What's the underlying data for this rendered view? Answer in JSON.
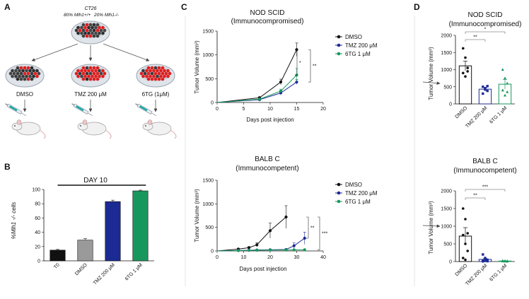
{
  "panels": {
    "A": "A",
    "B": "B",
    "C": "C",
    "D": "D"
  },
  "schematic": {
    "cell_line": "CT26",
    "mix_left": "80% Mlh1+/+",
    "mix_right": "20% Mlh1-/-",
    "conditions": [
      "DMSO",
      "TMZ 200 μM",
      "6TG (1μM)"
    ]
  },
  "colors": {
    "DMSO": "#111111",
    "TMZ": "#1c2a94",
    "6TG": "#18975c",
    "DMSO_B": "#9a9a9a"
  },
  "chart_data": [
    {
      "id": "B",
      "type": "bar",
      "title": "DAY 10",
      "ylabel": "%Mlh1 -/- cells",
      "ylim": [
        0,
        100
      ],
      "yticks": [
        0,
        20,
        40,
        60,
        80,
        100
      ],
      "categories": [
        "T0",
        "DMSO",
        "TMZ 200 μM",
        "6TG 1 μM"
      ],
      "values": [
        15,
        29,
        83,
        98
      ],
      "errors": [
        1,
        2,
        2,
        1
      ]
    },
    {
      "id": "C1",
      "type": "line",
      "title": "NOD SCID",
      "subtitle": "(Immunocompromised)",
      "xlabel": "Days post injection",
      "ylabel": "Tumor Volume (mm³)",
      "xlim": [
        0,
        20
      ],
      "ylim": [
        0,
        1500
      ],
      "xticks": [
        0,
        5,
        10,
        15,
        20
      ],
      "yticks": [
        0,
        500,
        1000,
        1500
      ],
      "legend": [
        "DMSO",
        "TMZ 200 μM",
        "6TG 1 μM"
      ],
      "series": [
        {
          "name": "DMSO",
          "x": [
            8,
            12,
            15
          ],
          "y": [
            100,
            430,
            1110
          ],
          "err": [
            20,
            60,
            140
          ]
        },
        {
          "name": "TMZ 200 μM",
          "x": [
            8,
            12,
            15
          ],
          "y": [
            60,
            200,
            430
          ],
          "err": [
            10,
            30,
            50
          ]
        },
        {
          "name": "6TG 1 μM",
          "x": [
            8,
            12,
            15
          ],
          "y": [
            70,
            240,
            575
          ],
          "err": [
            15,
            40,
            140
          ]
        }
      ],
      "significance": [
        "*",
        "**"
      ]
    },
    {
      "id": "C2",
      "type": "line",
      "title": "BALB C",
      "subtitle": "(Immunocompetent)",
      "xlabel": "Days post injection",
      "ylabel": "Tumor Volume (mm³)",
      "xlim": [
        0,
        40
      ],
      "ylim": [
        0,
        1500
      ],
      "xticks": [
        0,
        10,
        20,
        30,
        40
      ],
      "yticks": [
        0,
        500,
        1000,
        1500
      ],
      "legend": [
        "DMSO",
        "TMZ 200 μM",
        "6TG 1 μM"
      ],
      "series": [
        {
          "name": "DMSO",
          "x": [
            8,
            12,
            15,
            20,
            26
          ],
          "y": [
            40,
            70,
            130,
            430,
            720
          ],
          "err": [
            10,
            20,
            40,
            160,
            240
          ]
        },
        {
          "name": "TMZ 200 μM",
          "x": [
            8,
            12,
            15,
            20,
            26,
            29,
            33
          ],
          "y": [
            10,
            15,
            20,
            25,
            30,
            110,
            270
          ],
          "err": [
            3,
            5,
            5,
            8,
            15,
            60,
            130
          ]
        },
        {
          "name": "6TG 1 μM",
          "x": [
            8,
            12,
            15,
            20,
            26,
            29,
            33
          ],
          "y": [
            8,
            12,
            15,
            18,
            20,
            22,
            25
          ],
          "err": [
            3,
            3,
            4,
            5,
            5,
            5,
            8
          ]
        }
      ],
      "significance": [
        "**",
        "***"
      ]
    },
    {
      "id": "D1",
      "type": "bar",
      "title": "NOD SCID",
      "subtitle": "(Immunocompromised)",
      "ylabel": "Tumor Volume (mm³)",
      "ylim": [
        0,
        2000
      ],
      "yticks": [
        0,
        500,
        1000,
        1500,
        2000
      ],
      "categories": [
        "DMSO",
        "TMZ 200 μM",
        "6TG 1 μM"
      ],
      "values": [
        1110,
        430,
        575
      ],
      "errors": [
        140,
        50,
        140
      ],
      "points": [
        [
          1620,
          1350,
          1050,
          900,
          800,
          950
        ],
        [
          500,
          420,
          380,
          300,
          460,
          520
        ],
        [
          1000,
          750,
          600,
          400,
          250,
          350
        ]
      ],
      "significance": [
        "**",
        "*"
      ]
    },
    {
      "id": "D2",
      "type": "bar",
      "title": "BALB C",
      "subtitle": "(Immunocompetent)",
      "ylabel": "Tumor Volume (mm³)",
      "ylim": [
        0,
        2000
      ],
      "yticks": [
        0,
        500,
        1000,
        1500,
        2000
      ],
      "categories": [
        "DMSO",
        "TMZ 200 μM",
        "6TG 1 μM"
      ],
      "values": [
        720,
        60,
        15
      ],
      "errors": [
        240,
        30,
        5
      ],
      "points": [
        [
          1500,
          1200,
          800,
          750,
          500,
          300,
          100,
          50
        ],
        [
          200,
          100,
          50,
          30,
          20,
          10,
          5
        ],
        [
          25,
          20,
          15,
          10,
          8,
          5
        ]
      ],
      "significance": [
        "**",
        "***"
      ]
    }
  ]
}
